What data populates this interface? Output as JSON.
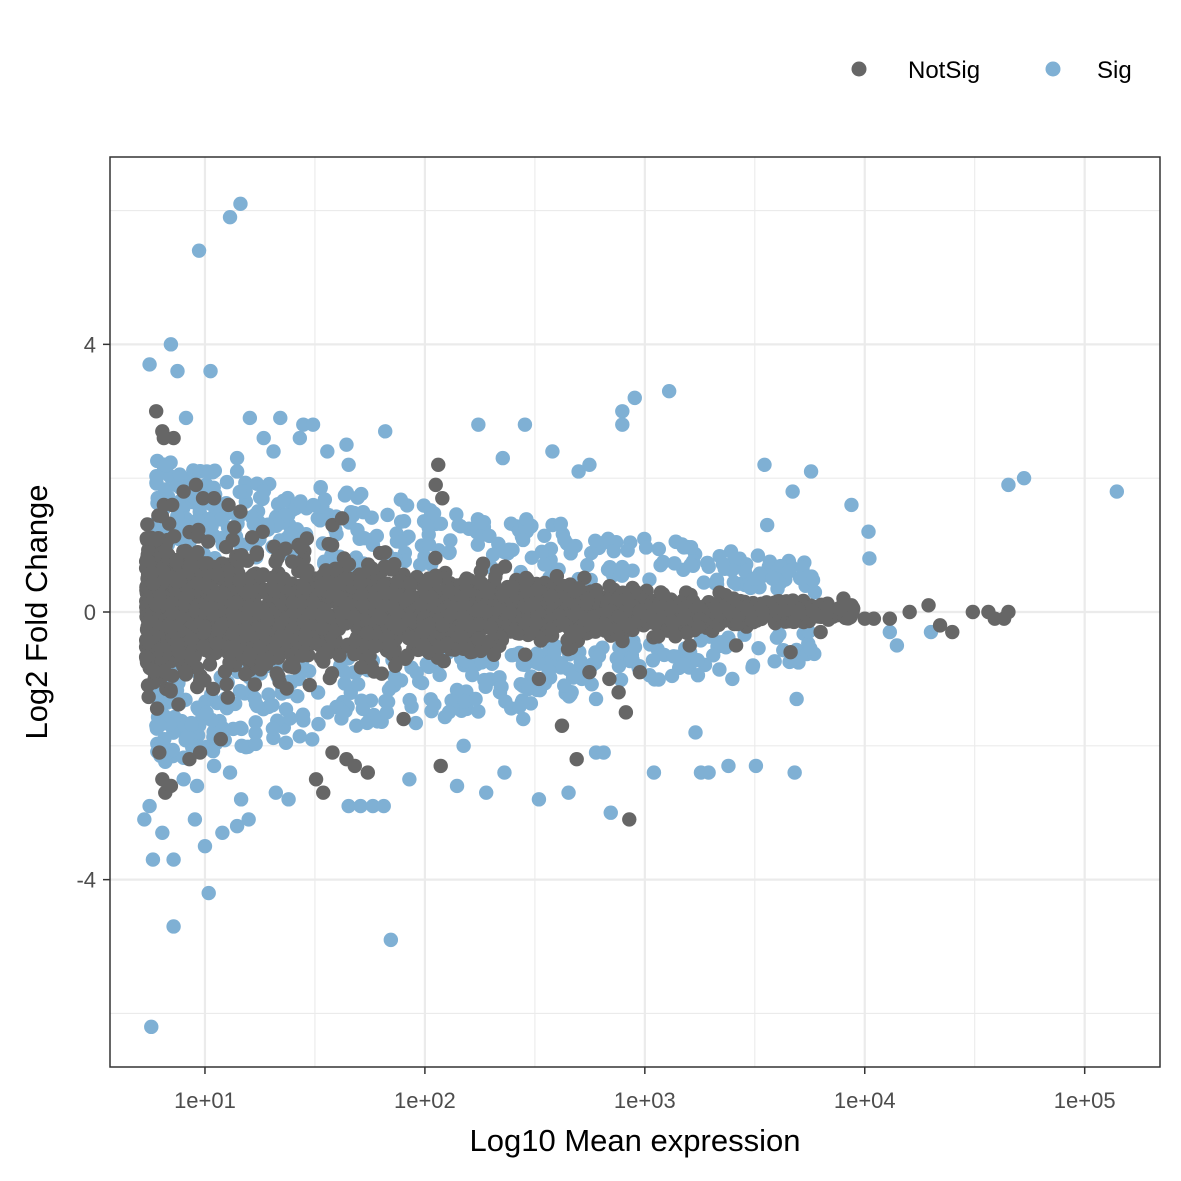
{
  "chart_data": {
    "type": "scatter",
    "xlabel": "Log10 Mean expression",
    "ylabel": "Log2 Fold Change",
    "x_scale": "log10",
    "xlim": [
      3.7,
      220000
    ],
    "ylim": [
      -6.8,
      6.8
    ],
    "x_ticks": [
      10,
      100,
      1000,
      10000,
      100000
    ],
    "x_tick_labels": [
      "1e+01",
      "1e+02",
      "1e+03",
      "1e+04",
      "1e+05"
    ],
    "y_ticks": [
      -4,
      0,
      4
    ],
    "y_tick_labels": [
      "-4",
      "0",
      "4"
    ],
    "grid": true,
    "legend": {
      "position": "top-right",
      "entries": [
        "NotSig",
        "Sig"
      ]
    },
    "colors": {
      "NotSig": "#666666",
      "Sig": "#7FB0D4",
      "grid": "#ebebeb",
      "frame": "#333333"
    },
    "series": [
      {
        "name": "NotSig",
        "note_points": "outlier and edge points read from the figure; the dense central cloud is the bulk of this series",
        "points": [
          [
            6.0,
            3.0
          ],
          [
            6.4,
            2.7
          ],
          [
            7.2,
            2.6
          ],
          [
            6.5,
            2.6
          ],
          [
            6.5,
            1.6
          ],
          [
            7.1,
            1.6
          ],
          [
            8.0,
            1.8
          ],
          [
            9.1,
            1.9
          ],
          [
            9.8,
            1.7
          ],
          [
            11.0,
            1.7
          ],
          [
            12.8,
            1.6
          ],
          [
            14.5,
            1.5
          ],
          [
            6.2,
            -2.1
          ],
          [
            6.4,
            -2.5
          ],
          [
            6.6,
            -2.7
          ],
          [
            7.0,
            -2.6
          ],
          [
            8.5,
            -2.2
          ],
          [
            9.5,
            -2.1
          ],
          [
            11.8,
            -1.9
          ],
          [
            32.0,
            -2.5
          ],
          [
            34.5,
            -2.7
          ],
          [
            38.0,
            -2.1
          ],
          [
            44.0,
            -2.2
          ],
          [
            48.0,
            -2.3
          ],
          [
            55.0,
            -2.4
          ],
          [
            80.0,
            -1.6
          ],
          [
            118.0,
            -2.3
          ],
          [
            38.0,
            1.3
          ],
          [
            42.0,
            1.4
          ],
          [
            115.0,
            2.2
          ],
          [
            112.0,
            1.9
          ],
          [
            120.0,
            1.7
          ],
          [
            330.0,
            -1.0
          ],
          [
            420.0,
            -1.7
          ],
          [
            490.0,
            -2.2
          ],
          [
            560.0,
            -0.9
          ],
          [
            690.0,
            -1.0
          ],
          [
            760.0,
            -1.2
          ],
          [
            820.0,
            -1.5
          ],
          [
            850.0,
            -3.1
          ],
          [
            950.0,
            -0.9
          ],
          [
            1600.0,
            -0.5
          ],
          [
            2600.0,
            -0.5
          ],
          [
            4600.0,
            -0.6
          ],
          [
            6300.0,
            -0.3
          ],
          [
            8000.0,
            0.2
          ],
          [
            8700.0,
            0.1
          ],
          [
            10000.0,
            -0.1
          ],
          [
            11000.0,
            -0.1
          ],
          [
            13000.0,
            -0.1
          ],
          [
            16000.0,
            0.0
          ],
          [
            19500.0,
            0.1
          ],
          [
            22000.0,
            -0.2
          ],
          [
            25000.0,
            -0.3
          ],
          [
            31000.0,
            0.0
          ],
          [
            36500.0,
            0.0
          ],
          [
            39000.0,
            -0.1
          ],
          [
            43000.0,
            -0.1
          ],
          [
            45000.0,
            0.0
          ]
        ]
      },
      {
        "name": "Sig",
        "note_points": "outlier and edge points read from the figure; the remaining points form bands above and below the NotSig cloud",
        "points": [
          [
            14.5,
            6.1
          ],
          [
            13.0,
            5.9
          ],
          [
            9.4,
            5.4
          ],
          [
            7.0,
            4.0
          ],
          [
            5.6,
            3.7
          ],
          [
            7.5,
            3.6
          ],
          [
            10.6,
            3.6
          ],
          [
            8.2,
            2.9
          ],
          [
            16.0,
            2.9
          ],
          [
            22.0,
            2.9
          ],
          [
            28.0,
            2.8
          ],
          [
            31.0,
            2.8
          ],
          [
            18.5,
            2.6
          ],
          [
            27.0,
            2.6
          ],
          [
            20.5,
            2.4
          ],
          [
            14.0,
            2.3
          ],
          [
            9.4,
            2.1
          ],
          [
            10.2,
            2.1
          ],
          [
            14.0,
            2.1
          ],
          [
            36.0,
            2.4
          ],
          [
            44.0,
            2.5
          ],
          [
            66.0,
            2.7
          ],
          [
            45.0,
            2.2
          ],
          [
            175.0,
            2.8
          ],
          [
            285.0,
            2.8
          ],
          [
            226.0,
            2.3
          ],
          [
            380.0,
            2.4
          ],
          [
            500.0,
            2.1
          ],
          [
            560.0,
            2.2
          ],
          [
            790.0,
            3.0
          ],
          [
            790.0,
            2.8
          ],
          [
            900.0,
            3.2
          ],
          [
            1290.0,
            3.3
          ],
          [
            3500.0,
            2.2
          ],
          [
            5700.0,
            2.1
          ],
          [
            4700.0,
            1.8
          ],
          [
            8700.0,
            1.6
          ],
          [
            3600.0,
            1.3
          ],
          [
            10400.0,
            1.2
          ],
          [
            10500.0,
            0.8
          ],
          [
            4500.0,
            0.6
          ],
          [
            3800.0,
            0.5
          ],
          [
            45000.0,
            1.9
          ],
          [
            53000.0,
            2.0
          ],
          [
            140000.0,
            1.8
          ],
          [
            20000.0,
            -0.3
          ],
          [
            13000.0,
            -0.3
          ],
          [
            14000.0,
            -0.5
          ],
          [
            5.6,
            -2.9
          ],
          [
            5.3,
            -3.1
          ],
          [
            5.8,
            -3.7
          ],
          [
            6.4,
            -3.3
          ],
          [
            7.2,
            -3.7
          ],
          [
            9.0,
            -3.1
          ],
          [
            10.0,
            -3.5
          ],
          [
            10.4,
            -4.2
          ],
          [
            7.2,
            -4.7
          ],
          [
            5.7,
            -6.2
          ],
          [
            70.0,
            -4.9
          ],
          [
            12.0,
            -3.3
          ],
          [
            14.0,
            -3.2
          ],
          [
            15.8,
            -3.1
          ],
          [
            14.6,
            -2.8
          ],
          [
            13.0,
            -2.4
          ],
          [
            9.2,
            -2.6
          ],
          [
            8.0,
            -2.5
          ],
          [
            11.0,
            -2.3
          ],
          [
            21.0,
            -2.7
          ],
          [
            24.0,
            -2.8
          ],
          [
            45.0,
            -2.9
          ],
          [
            51.0,
            -2.9
          ],
          [
            58.0,
            -2.9
          ],
          [
            65.0,
            -2.9
          ],
          [
            85.0,
            -2.5
          ],
          [
            140.0,
            -2.6
          ],
          [
            190.0,
            -2.7
          ],
          [
            230.0,
            -2.4
          ],
          [
            330.0,
            -2.8
          ],
          [
            450.0,
            -2.7
          ],
          [
            700.0,
            -3.0
          ],
          [
            1100.0,
            -2.4
          ],
          [
            1800.0,
            -2.4
          ],
          [
            2400.0,
            -2.3
          ],
          [
            3200.0,
            -2.3
          ],
          [
            4800.0,
            -2.4
          ],
          [
            1950.0,
            -2.4
          ],
          [
            1700.0,
            -1.8
          ],
          [
            2500.0,
            -1.0
          ],
          [
            4900.0,
            -1.3
          ],
          [
            600.0,
            -1.3
          ],
          [
            430.0,
            -1.1
          ],
          [
            170.0,
            -1.3
          ],
          [
            280.0,
            -1.6
          ],
          [
            150.0,
            -2.0
          ],
          [
            600.0,
            -2.1
          ],
          [
            650.0,
            -2.1
          ]
        ]
      }
    ]
  }
}
